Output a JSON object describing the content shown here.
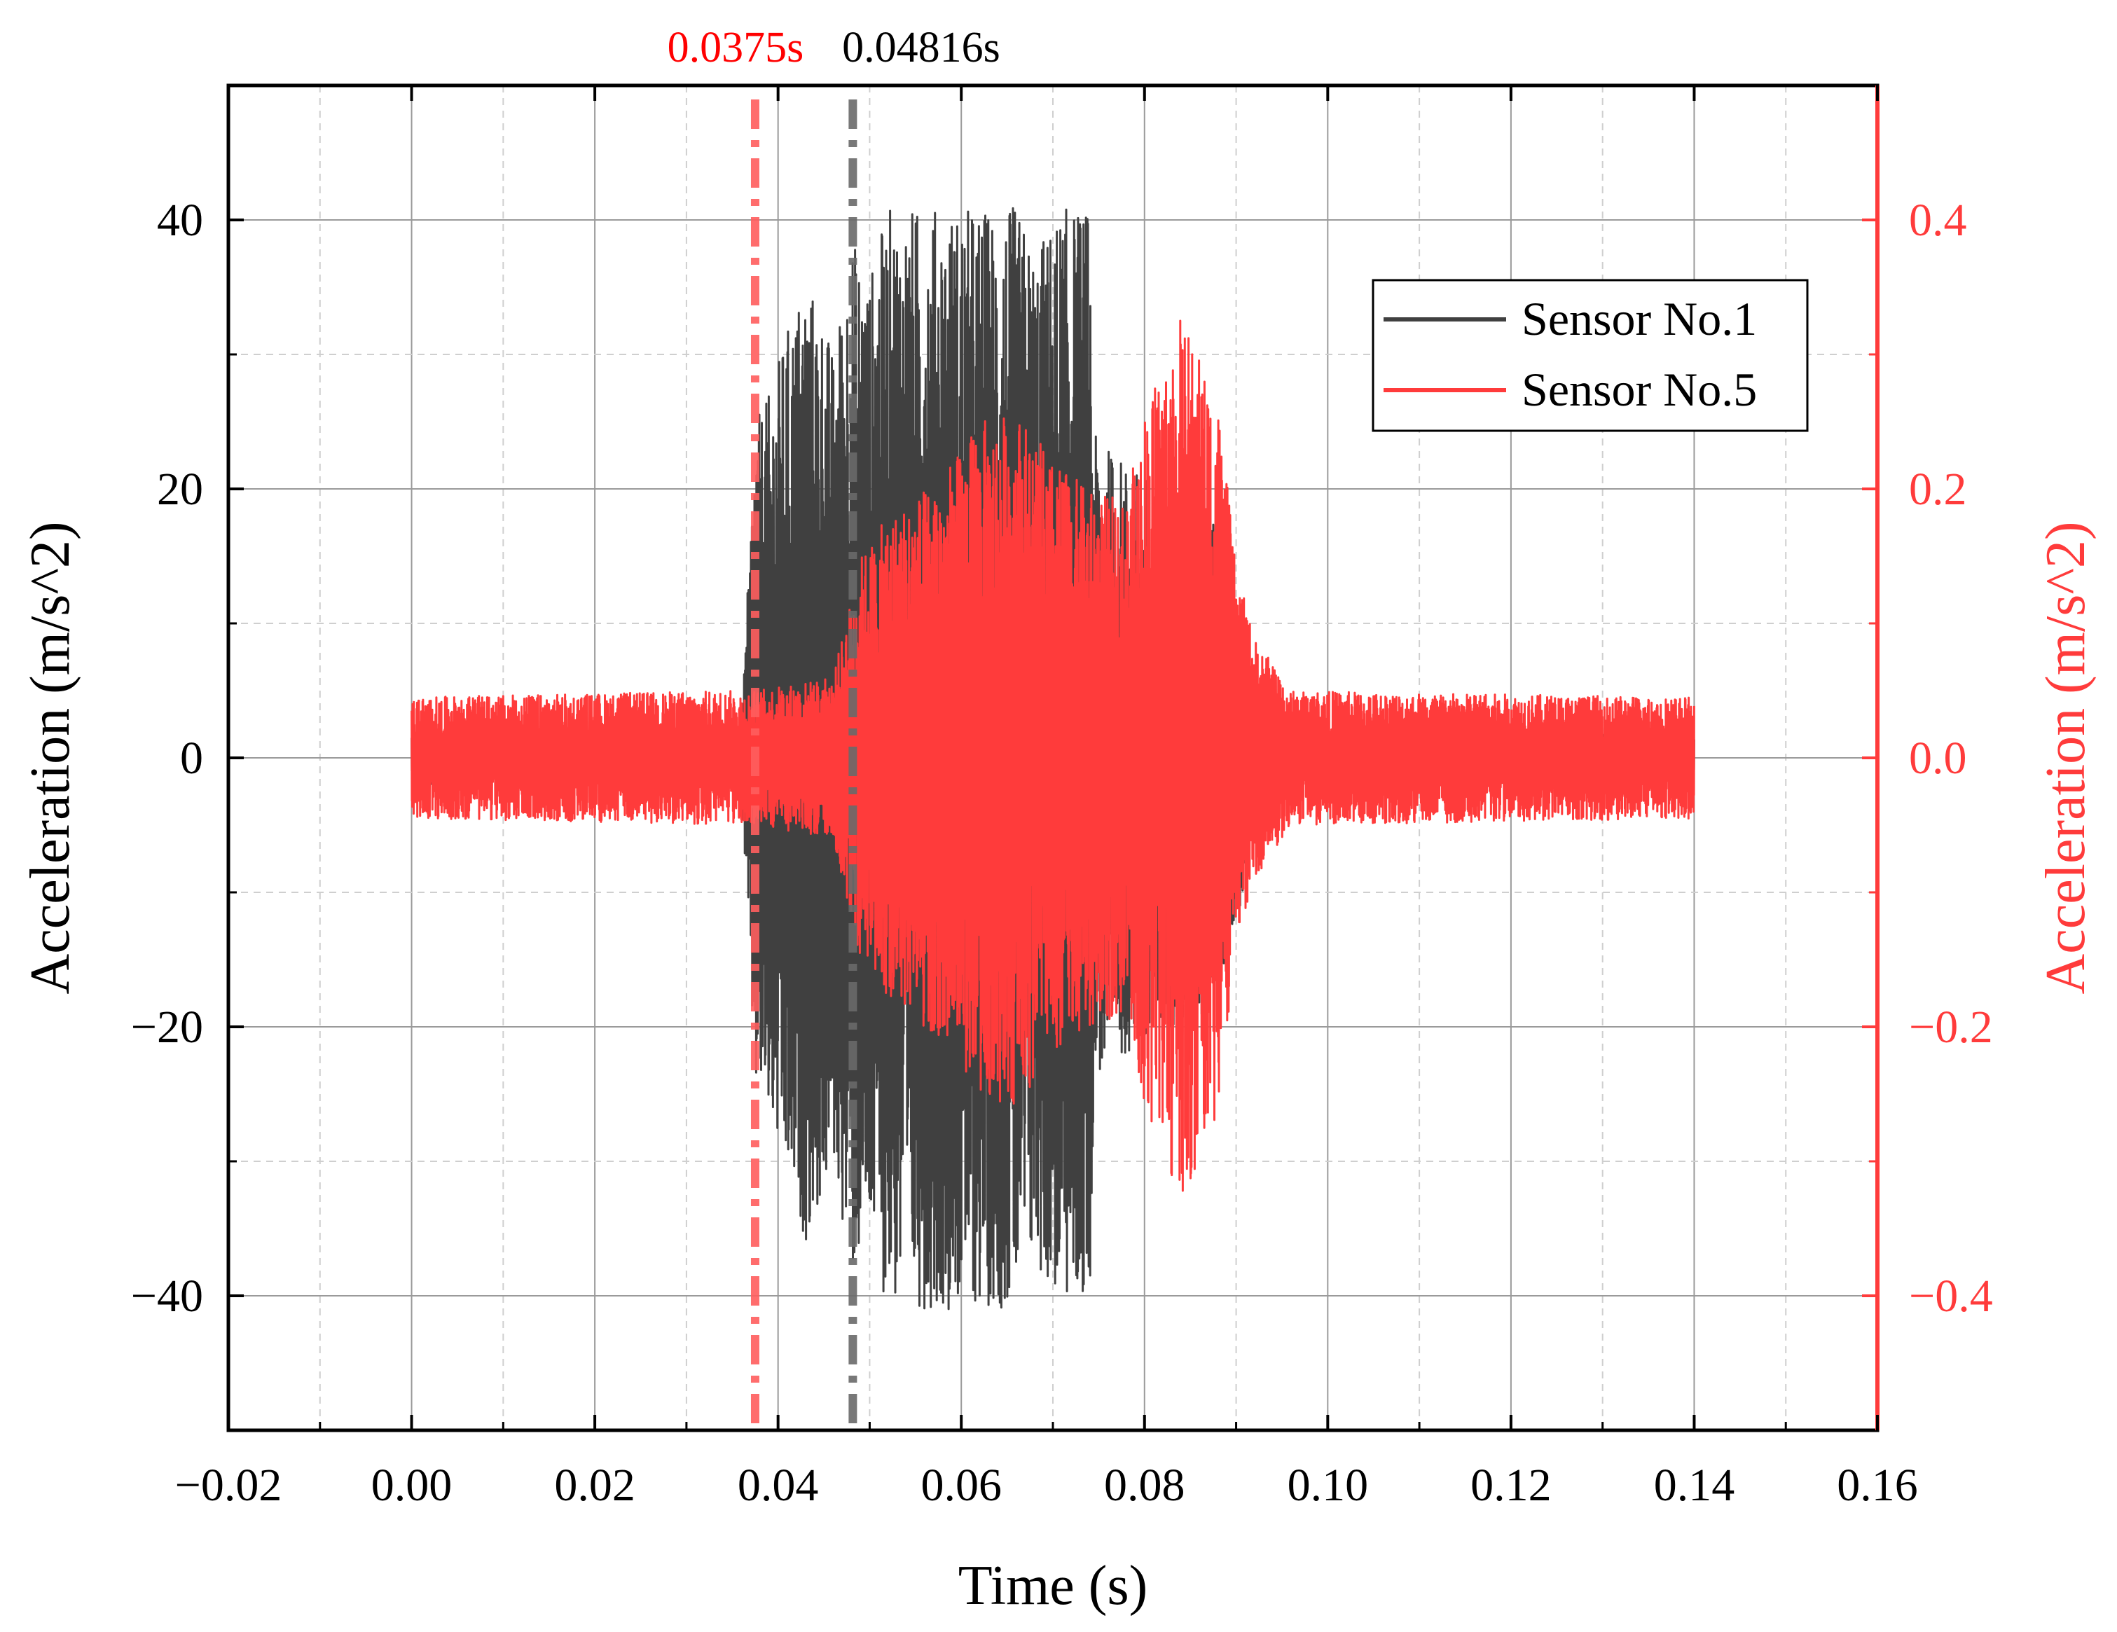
{
  "chart_data": {
    "type": "line",
    "title": "",
    "xlabel": "Time (s)",
    "ylabel_left": "Acceleration (m/s^2)",
    "ylabel_right": "Acceleration (m/s^2)",
    "xlim": [
      -0.02,
      0.16
    ],
    "ylim_left": [
      -50,
      50
    ],
    "ylim_right": [
      -0.5,
      0.5
    ],
    "x_ticks": [
      -0.02,
      0.0,
      0.02,
      0.04,
      0.06,
      0.08,
      0.1,
      0.12,
      0.14,
      0.16
    ],
    "x_tick_labels": [
      "−0.02",
      "0.00",
      "0.02",
      "0.04",
      "0.06",
      "0.08",
      "0.10",
      "0.12",
      "0.14",
      "0.16"
    ],
    "y_left_ticks": [
      40,
      20,
      0,
      -20,
      -40
    ],
    "y_left_tick_labels": [
      "40",
      "20",
      "0",
      "−20",
      "−40"
    ],
    "y_right_ticks": [
      0.4,
      0.2,
      0.0,
      -0.2,
      -0.4
    ],
    "y_right_tick_labels": [
      "0.4",
      "0.2",
      "0.0",
      "−0.2",
      "−0.4"
    ],
    "grid": true,
    "legend_position": "top-right",
    "colors": {
      "sensor1": "#404040",
      "sensor5": "#ff3b3b",
      "right_axis": "#ff3b3b",
      "marker1_text": "#ff0000",
      "marker2_text": "#000000"
    },
    "markers": [
      {
        "x": 0.0375,
        "label": "0.0375s",
        "color": "#ff5e5e",
        "text_color": "#ff0000"
      },
      {
        "x": 0.04816,
        "label": "0.04816s",
        "color": "#6a6a6a",
        "text_color": "#000000"
      }
    ],
    "series": [
      {
        "name": "Sensor No.1",
        "axis": "left",
        "color": "#404040",
        "x_range": [
          0.0,
          0.14
        ],
        "envelope": [
          [
            0.0,
            2
          ],
          [
            0.036,
            2
          ],
          [
            0.0375,
            25
          ],
          [
            0.039,
            27
          ],
          [
            0.041,
            32
          ],
          [
            0.043,
            36
          ],
          [
            0.045,
            33
          ],
          [
            0.046,
            30
          ],
          [
            0.048,
            39
          ],
          [
            0.05,
            36
          ],
          [
            0.052,
            41
          ],
          [
            0.06,
            41
          ],
          [
            0.066,
            41
          ],
          [
            0.068,
            38
          ],
          [
            0.071,
            41
          ],
          [
            0.074,
            41
          ],
          [
            0.0745,
            24
          ],
          [
            0.078,
            22
          ],
          [
            0.082,
            20
          ],
          [
            0.086,
            20
          ],
          [
            0.09,
            13
          ],
          [
            0.092,
            5
          ],
          [
            0.095,
            2
          ],
          [
            0.14,
            2
          ]
        ],
        "peak_max": 41.2,
        "peak_min": -41.2
      },
      {
        "name": "Sensor No.5",
        "axis": "right",
        "color": "#ff3b3b",
        "x_range": [
          0.0,
          0.14
        ],
        "envelope": [
          [
            0.0,
            0.045
          ],
          [
            0.035,
            0.05
          ],
          [
            0.0375,
            0.05
          ],
          [
            0.046,
            0.06
          ],
          [
            0.049,
            0.15
          ],
          [
            0.052,
            0.18
          ],
          [
            0.058,
            0.21
          ],
          [
            0.062,
            0.25
          ],
          [
            0.066,
            0.26
          ],
          [
            0.07,
            0.22
          ],
          [
            0.074,
            0.2
          ],
          [
            0.078,
            0.19
          ],
          [
            0.08,
            0.26
          ],
          [
            0.084,
            0.33
          ],
          [
            0.088,
            0.27
          ],
          [
            0.09,
            0.14
          ],
          [
            0.092,
            0.09
          ],
          [
            0.096,
            0.05
          ],
          [
            0.14,
            0.045
          ]
        ],
        "peak_max": 0.365,
        "peak_min": -0.335
      }
    ]
  }
}
